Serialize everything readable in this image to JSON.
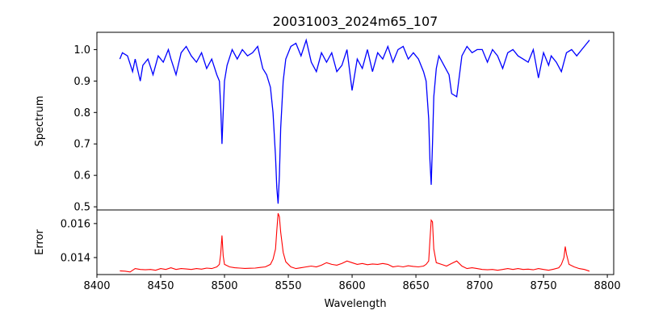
{
  "figure": {
    "title": "20031003_2024m65_107"
  },
  "chart_data": [
    {
      "type": "line",
      "panel": "spectrum",
      "ylabel": "Spectrum",
      "xlim": [
        8400,
        8805
      ],
      "ylim": [
        0.49,
        1.055
      ],
      "yticks": [
        0.5,
        0.6,
        0.7,
        0.8,
        0.9,
        1.0
      ],
      "ytick_labels": [
        "0.5",
        "0.6",
        "0.7",
        "0.8",
        "0.9",
        "1.0"
      ],
      "color": "#0000ff",
      "x": [
        8418,
        8420,
        8424,
        8428,
        8430,
        8434,
        8436,
        8440,
        8444,
        8448,
        8452,
        8456,
        8458,
        8462,
        8466,
        8470,
        8474,
        8478,
        8482,
        8486,
        8490,
        8494,
        8496,
        8497,
        8498,
        8499,
        8500,
        8502,
        8506,
        8510,
        8514,
        8518,
        8522,
        8526,
        8530,
        8533,
        8536,
        8538,
        8540,
        8541,
        8542,
        8543,
        8544,
        8546,
        8548,
        8552,
        8556,
        8560,
        8564,
        8568,
        8572,
        8576,
        8580,
        8584,
        8588,
        8592,
        8596,
        8600,
        8604,
        8608,
        8612,
        8616,
        8620,
        8624,
        8628,
        8632,
        8636,
        8640,
        8644,
        8648,
        8652,
        8656,
        8658,
        8660,
        8661,
        8662,
        8663,
        8664,
        8666,
        8668,
        8672,
        8676,
        8678,
        8682,
        8686,
        8690,
        8694,
        8698,
        8702,
        8706,
        8710,
        8714,
        8718,
        8722,
        8726,
        8730,
        8734,
        8738,
        8742,
        8746,
        8750,
        8754,
        8756,
        8760,
        8764,
        8768,
        8772,
        8776,
        8780,
        8784,
        8786
      ],
      "y": [
        0.97,
        0.99,
        0.98,
        0.93,
        0.97,
        0.9,
        0.95,
        0.97,
        0.92,
        0.98,
        0.96,
        1.0,
        0.97,
        0.92,
        0.99,
        1.01,
        0.98,
        0.96,
        0.99,
        0.94,
        0.97,
        0.92,
        0.9,
        0.82,
        0.7,
        0.8,
        0.9,
        0.95,
        1.0,
        0.97,
        1.0,
        0.98,
        0.99,
        1.01,
        0.94,
        0.92,
        0.88,
        0.8,
        0.66,
        0.56,
        0.51,
        0.6,
        0.75,
        0.9,
        0.97,
        1.01,
        1.02,
        0.98,
        1.03,
        0.96,
        0.93,
        0.99,
        0.96,
        0.99,
        0.93,
        0.95,
        1.0,
        0.87,
        0.97,
        0.94,
        1.0,
        0.93,
        0.99,
        0.97,
        1.01,
        0.96,
        1.0,
        1.01,
        0.97,
        0.99,
        0.97,
        0.93,
        0.9,
        0.78,
        0.65,
        0.57,
        0.7,
        0.85,
        0.94,
        0.98,
        0.95,
        0.92,
        0.86,
        0.85,
        0.98,
        1.01,
        0.99,
        1.0,
        1.0,
        0.96,
        1.0,
        0.98,
        0.94,
        0.99,
        1.0,
        0.98,
        0.97,
        0.96,
        1.0,
        0.91,
        0.99,
        0.95,
        0.98,
        0.96,
        0.93,
        0.99,
        1.0,
        0.98,
        1.0,
        1.02,
        1.03
      ]
    },
    {
      "type": "line",
      "panel": "error",
      "xlabel": "Wavelength",
      "ylabel": "Error",
      "xlim": [
        8400,
        8805
      ],
      "ylim": [
        0.013,
        0.0168
      ],
      "xticks": [
        8400,
        8450,
        8500,
        8550,
        8600,
        8650,
        8700,
        8750,
        8800
      ],
      "xtick_labels": [
        "8400",
        "8450",
        "8500",
        "8550",
        "8600",
        "8650",
        "8700",
        "8750",
        "8800"
      ],
      "yticks": [
        0.014,
        0.016
      ],
      "ytick_labels": [
        "0.014",
        "0.016"
      ],
      "color": "#ff0000",
      "x": [
        8418,
        8422,
        8426,
        8430,
        8434,
        8438,
        8442,
        8446,
        8450,
        8454,
        8458,
        8462,
        8466,
        8470,
        8474,
        8478,
        8482,
        8486,
        8490,
        8494,
        8496,
        8497,
        8498,
        8499,
        8500,
        8504,
        8508,
        8512,
        8516,
        8520,
        8524,
        8528,
        8532,
        8536,
        8538,
        8540,
        8541,
        8542,
        8543,
        8544,
        8546,
        8548,
        8552,
        8556,
        8560,
        8564,
        8568,
        8572,
        8576,
        8580,
        8584,
        8588,
        8592,
        8596,
        8600,
        8604,
        8608,
        8612,
        8616,
        8620,
        8624,
        8628,
        8632,
        8636,
        8640,
        8644,
        8648,
        8652,
        8656,
        8658,
        8660,
        8661,
        8662,
        8663,
        8664,
        8666,
        8670,
        8674,
        8678,
        8682,
        8686,
        8690,
        8694,
        8698,
        8702,
        8706,
        8710,
        8714,
        8718,
        8722,
        8726,
        8730,
        8734,
        8738,
        8742,
        8746,
        8750,
        8754,
        8758,
        8762,
        8764,
        8766,
        8767,
        8768,
        8770,
        8774,
        8778,
        8782,
        8786
      ],
      "y": [
        0.01322,
        0.0132,
        0.01315,
        0.01335,
        0.0133,
        0.01328,
        0.0133,
        0.01325,
        0.01335,
        0.0133,
        0.0134,
        0.0133,
        0.01335,
        0.01333,
        0.0133,
        0.01335,
        0.01332,
        0.01338,
        0.01335,
        0.01345,
        0.0136,
        0.0142,
        0.0153,
        0.0141,
        0.0136,
        0.01345,
        0.0134,
        0.01338,
        0.01336,
        0.01337,
        0.01338,
        0.01342,
        0.01345,
        0.0136,
        0.0139,
        0.0145,
        0.0156,
        0.0166,
        0.0164,
        0.0155,
        0.0143,
        0.01375,
        0.01345,
        0.01335,
        0.0134,
        0.01345,
        0.0135,
        0.01345,
        0.01355,
        0.0137,
        0.0136,
        0.01355,
        0.01365,
        0.0138,
        0.0137,
        0.0136,
        0.01365,
        0.01358,
        0.01362,
        0.0136,
        0.01365,
        0.0136,
        0.01345,
        0.0135,
        0.01345,
        0.01352,
        0.01348,
        0.01345,
        0.0135,
        0.0136,
        0.0138,
        0.015,
        0.0162,
        0.0161,
        0.0145,
        0.0137,
        0.0136,
        0.0135,
        0.01365,
        0.0138,
        0.0135,
        0.01335,
        0.0134,
        0.01335,
        0.0133,
        0.01328,
        0.0133,
        0.01325,
        0.0133,
        0.01335,
        0.0133,
        0.01335,
        0.0133,
        0.01332,
        0.01328,
        0.01335,
        0.0133,
        0.01325,
        0.01332,
        0.0134,
        0.0136,
        0.014,
        0.01465,
        0.0142,
        0.0136,
        0.01345,
        0.01335,
        0.0133,
        0.0132
      ]
    }
  ]
}
